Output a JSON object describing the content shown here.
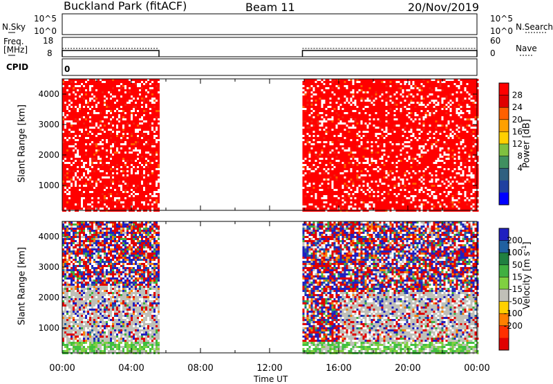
{
  "header": {
    "station": "Buckland Park (fitACF)",
    "beam": "Beam 11",
    "date": "20/Nov/2019"
  },
  "noise_panel": {
    "left_label": "N.Sky",
    "right_label": "N.Search",
    "left_ticks": [
      "10^5",
      "10^0"
    ],
    "right_ticks": [
      "10^5",
      "10^0"
    ]
  },
  "freq_panel": {
    "left_label_line1": "Freq.",
    "left_label_line2": "[MHz]",
    "right_label": "Nave",
    "left_ticks": [
      "18",
      "8"
    ],
    "right_ticks": [
      "60",
      "0"
    ]
  },
  "cpid_panel": {
    "label": "CPID",
    "value": "0"
  },
  "x_axis": {
    "label": "Time UT",
    "ticks": [
      "00:00",
      "04:00",
      "08:00",
      "12:00",
      "16:00",
      "20:00",
      "00:00"
    ]
  },
  "chart_data": [
    {
      "type": "heatmap",
      "ylabel": "Slant Range [km]",
      "xlabel": "",
      "x_range_hours": [
        0,
        24
      ],
      "ylim": [
        180,
        4500
      ],
      "y_ticks": [
        "4000",
        "3000",
        "2000",
        "1000"
      ],
      "y_tick_values": [
        4000,
        3000,
        2000,
        1000
      ],
      "data_intervals_hours": [
        [
          0,
          5.6
        ],
        [
          13.9,
          24
        ]
      ],
      "colorbar": {
        "label": "Power [dB]",
        "ticks": [
          "28",
          "24",
          "20",
          "16",
          "12",
          "8",
          "4"
        ],
        "colors": [
          "#ff0000",
          "#e00000",
          "#ff6000",
          "#ffa000",
          "#ffd000",
          "#80c040",
          "#409060",
          "#306080",
          "#2040a0",
          "#0000ff"
        ]
      },
      "dominant_color": "#ff0000"
    },
    {
      "type": "heatmap",
      "ylabel": "Slant Range [km]",
      "xlabel": "Time UT",
      "x_range_hours": [
        0,
        24
      ],
      "ylim": [
        180,
        4500
      ],
      "y_ticks": [
        "4000",
        "3000",
        "2000",
        "1000"
      ],
      "y_tick_values": [
        4000,
        3000,
        2000,
        1000
      ],
      "data_intervals_hours": [
        [
          0,
          5.6
        ],
        [
          13.9,
          24
        ]
      ],
      "colorbar": {
        "label_main": "Velocity [m s",
        "label_sup": "-1",
        "label_end": "]",
        "ticks": [
          "200",
          "100",
          "50",
          "15",
          "-15",
          "-50",
          "-100",
          "-200"
        ],
        "colors": [
          "#2020c0",
          "#2060a0",
          "#208040",
          "#40b040",
          "#80d040",
          "#c0c0b8",
          "#ffd000",
          "#ff8000",
          "#ff3000",
          "#e00000"
        ]
      }
    }
  ]
}
